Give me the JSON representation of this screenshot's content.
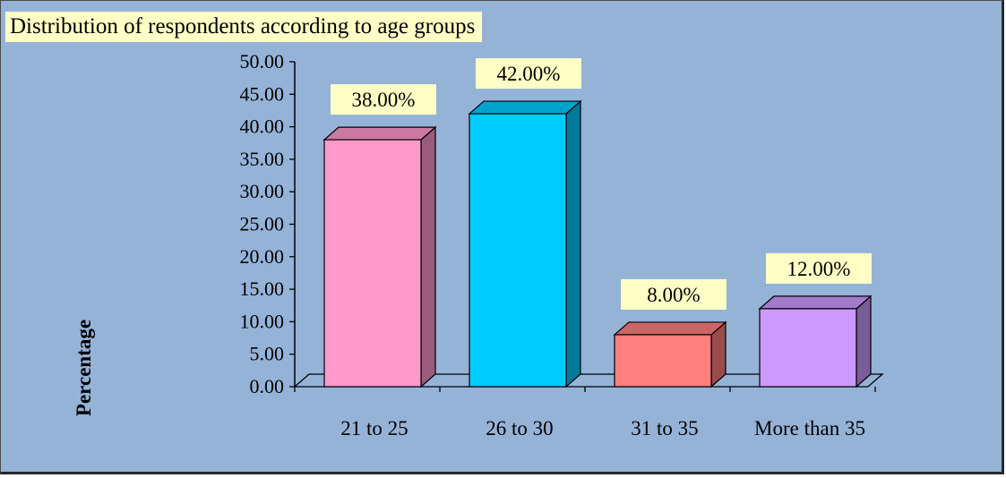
{
  "chart_data": {
    "type": "bar",
    "title": "Distribution of respondents according to age groups",
    "ylabel": "Percentage",
    "xlabel": "",
    "categories": [
      "21 to 25",
      "26 to 30",
      "31 to 35",
      "More than 35"
    ],
    "values": [
      38,
      42,
      8,
      12
    ],
    "data_labels": [
      "38.00%",
      "42.00%",
      "8.00%",
      "12.00%"
    ],
    "ylim": [
      0,
      50
    ],
    "yticks": [
      "0.00",
      "5.00",
      "10.00",
      "15.00",
      "20.00",
      "25.00",
      "30.00",
      "35.00",
      "40.00",
      "45.00",
      "50.00"
    ],
    "bar_colors": [
      "#ff99cc",
      "#00ccff",
      "#ff7f7f",
      "#cc99ff"
    ],
    "background_color": "#95b3d7",
    "label_background": "#ffffc6",
    "grid": false,
    "legend": "none",
    "style": "3d-column"
  }
}
